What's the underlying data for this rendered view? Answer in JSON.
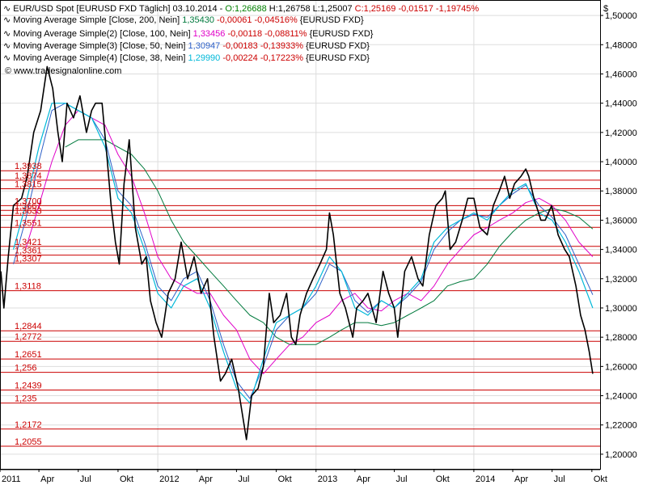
{
  "header": {
    "line1": {
      "instrument": "EUR/USD Spot [EURUSD FXD  Täglich] 03.10.2014 - ",
      "open": "O:1,26688",
      "high": " H:1,26758",
      "low": " L:1,25007",
      "close": " C:1,25169 -0,01517 -1,19745%"
    },
    "studies": [
      {
        "label": "Moving Average Simple [Close, 200, Nein] ",
        "value": "1,35430",
        "change": " -0,00061 -0,04516%",
        "symbol": " {EURUSD FXD}"
      },
      {
        "label": "Moving Average Simple(2) [Close, 100, Nein] ",
        "value": "1,33456",
        "change": " -0,00118 -0,08811%",
        "symbol": " {EURUSD FXD}"
      },
      {
        "label": "Moving Average Simple(3) [Close, 50, Nein] ",
        "value": "1,30947",
        "change": " -0,00183 -0,13933%",
        "symbol": " {EURUSD FXD}"
      },
      {
        "label": "Moving Average Simple(4) [Close, 38, Nein] ",
        "value": "1,29990",
        "change": " -0,00224 -0,17223%",
        "symbol": " {EURUSD FXD}"
      }
    ],
    "copyright": "© www.tradesignalonline.com"
  },
  "colors": {
    "price": "#000000",
    "level": "#cc0000",
    "ma200": "#007a3d",
    "ma100": "#e000c8",
    "ma50": "#2d60c8",
    "ma38": "#00b8d8",
    "grid": "#dddddd",
    "open_text": "#008000",
    "change_text": "#cc0000"
  },
  "chart_data": {
    "type": "line",
    "currency_symbol": "$",
    "ylim": [
      1.19,
      1.51
    ],
    "yticks": [
      1.2,
      1.22,
      1.24,
      1.26,
      1.28,
      1.3,
      1.32,
      1.34,
      1.36,
      1.38,
      1.4,
      1.42,
      1.44,
      1.46,
      1.48,
      1.5
    ],
    "ytick_labels": [
      "1,20000",
      "1,22000",
      "1,24000",
      "1,26000",
      "1,28000",
      "1,30000",
      "1,32000",
      "1,34000",
      "1,36000",
      "1,38000",
      "1,40000",
      "1,42000",
      "1,44000",
      "1,46000",
      "1,48000",
      "1,50000"
    ],
    "xlim": [
      "2011-01-01",
      "2014-10-20"
    ],
    "xticks": [
      {
        "date": "2011-01-01",
        "label": "2011",
        "grid": true
      },
      {
        "date": "2011-04-01",
        "label": "Apr",
        "grid": false
      },
      {
        "date": "2011-07-01",
        "label": "Jul",
        "grid": false
      },
      {
        "date": "2011-10-01",
        "label": "Okt",
        "grid": false
      },
      {
        "date": "2012-01-01",
        "label": "2012",
        "grid": true
      },
      {
        "date": "2012-04-01",
        "label": "Apr",
        "grid": false
      },
      {
        "date": "2012-07-01",
        "label": "Jul",
        "grid": false
      },
      {
        "date": "2012-10-01",
        "label": "Okt",
        "grid": false
      },
      {
        "date": "2013-01-01",
        "label": "2013",
        "grid": true
      },
      {
        "date": "2013-04-01",
        "label": "Apr",
        "grid": false
      },
      {
        "date": "2013-07-01",
        "label": "Jul",
        "grid": false
      },
      {
        "date": "2013-10-01",
        "label": "Okt",
        "grid": false
      },
      {
        "date": "2014-01-01",
        "label": "2014",
        "grid": true
      },
      {
        "date": "2014-04-01",
        "label": "Apr",
        "grid": false
      },
      {
        "date": "2014-07-01",
        "label": "Jul",
        "grid": false
      },
      {
        "date": "2014-10-01",
        "label": "Okt",
        "grid": false
      }
    ],
    "levels": [
      {
        "value": 1.3938,
        "label": "1,3938"
      },
      {
        "value": 1.3874,
        "label": "1,3874"
      },
      {
        "value": 1.3815,
        "label": "1,3815"
      },
      {
        "value": 1.37,
        "label": "1,3700"
      },
      {
        "value": 1.3667,
        "label": "1,3667"
      },
      {
        "value": 1.3633,
        "label": "1,3633"
      },
      {
        "value": 1.3551,
        "label": "1,3551"
      },
      {
        "value": 1.3421,
        "label": "1,3421"
      },
      {
        "value": 1.3361,
        "label": "1,3361"
      },
      {
        "value": 1.3307,
        "label": "1,3307"
      },
      {
        "value": 1.3118,
        "label": "1,3118"
      },
      {
        "value": 1.2844,
        "label": "1,2844"
      },
      {
        "value": 1.2772,
        "label": "1,2772"
      },
      {
        "value": 1.2651,
        "label": "1,2651"
      },
      {
        "value": 1.256,
        "label": "1,256"
      },
      {
        "value": 1.2439,
        "label": "1,2439"
      },
      {
        "value": 1.235,
        "label": "1,235"
      },
      {
        "value": 1.2172,
        "label": "1,2172"
      },
      {
        "value": 1.2055,
        "label": "1,2055"
      }
    ],
    "series": [
      {
        "key": "price",
        "x": [
          "2011-01-03",
          "2011-01-10",
          "2011-01-20",
          "2011-02-01",
          "2011-02-20",
          "2011-03-05",
          "2011-03-20",
          "2011-04-05",
          "2011-04-20",
          "2011-05-03",
          "2011-05-15",
          "2011-05-25",
          "2011-06-05",
          "2011-06-20",
          "2011-07-05",
          "2011-07-20",
          "2011-08-01",
          "2011-08-10",
          "2011-08-25",
          "2011-09-05",
          "2011-09-15",
          "2011-09-25",
          "2011-10-04",
          "2011-10-15",
          "2011-10-27",
          "2011-11-10",
          "2011-11-25",
          "2011-12-05",
          "2011-12-15",
          "2011-12-28",
          "2012-01-10",
          "2012-01-25",
          "2012-02-10",
          "2012-02-24",
          "2012-03-10",
          "2012-03-25",
          "2012-04-10",
          "2012-04-25",
          "2012-05-10",
          "2012-05-25",
          "2012-06-05",
          "2012-06-20",
          "2012-07-05",
          "2012-07-24",
          "2012-08-05",
          "2012-08-20",
          "2012-09-01",
          "2012-09-15",
          "2012-09-25",
          "2012-10-10",
          "2012-10-25",
          "2012-11-05",
          "2012-11-15",
          "2012-11-25",
          "2012-12-10",
          "2012-12-25",
          "2013-01-10",
          "2013-01-25",
          "2013-02-01",
          "2013-02-10",
          "2013-02-25",
          "2013-03-10",
          "2013-03-27",
          "2013-04-05",
          "2013-04-20",
          "2013-05-01",
          "2013-05-20",
          "2013-06-05",
          "2013-06-18",
          "2013-07-01",
          "2013-07-09",
          "2013-07-25",
          "2013-08-10",
          "2013-08-25",
          "2013-09-05",
          "2013-09-20",
          "2013-10-05",
          "2013-10-20",
          "2013-10-27",
          "2013-11-07",
          "2013-11-20",
          "2013-12-05",
          "2013-12-18",
          "2014-01-01",
          "2014-01-15",
          "2014-02-01",
          "2014-02-15",
          "2014-03-01",
          "2014-03-13",
          "2014-03-25",
          "2014-04-05",
          "2014-04-20",
          "2014-05-01",
          "2014-05-08",
          "2014-05-20",
          "2014-06-05",
          "2014-06-15",
          "2014-06-30",
          "2014-07-15",
          "2014-07-30",
          "2014-08-10",
          "2014-08-25",
          "2014-09-05",
          "2014-09-15",
          "2014-09-25",
          "2014-10-03"
        ],
        "y": [
          1.325,
          1.3,
          1.335,
          1.37,
          1.375,
          1.39,
          1.42,
          1.435,
          1.465,
          1.45,
          1.42,
          1.4,
          1.44,
          1.43,
          1.445,
          1.42,
          1.435,
          1.44,
          1.44,
          1.405,
          1.37,
          1.345,
          1.33,
          1.385,
          1.415,
          1.355,
          1.33,
          1.335,
          1.305,
          1.29,
          1.28,
          1.31,
          1.32,
          1.345,
          1.32,
          1.335,
          1.31,
          1.32,
          1.28,
          1.25,
          1.255,
          1.265,
          1.245,
          1.21,
          1.24,
          1.245,
          1.26,
          1.31,
          1.29,
          1.295,
          1.31,
          1.28,
          1.275,
          1.295,
          1.31,
          1.32,
          1.33,
          1.34,
          1.365,
          1.35,
          1.31,
          1.3,
          1.28,
          1.3,
          1.305,
          1.31,
          1.29,
          1.325,
          1.31,
          1.3,
          1.28,
          1.325,
          1.335,
          1.32,
          1.315,
          1.35,
          1.37,
          1.375,
          1.38,
          1.34,
          1.345,
          1.36,
          1.375,
          1.375,
          1.355,
          1.35,
          1.37,
          1.38,
          1.39,
          1.375,
          1.385,
          1.39,
          1.395,
          1.39,
          1.375,
          1.36,
          1.36,
          1.37,
          1.35,
          1.34,
          1.335,
          1.315,
          1.295,
          1.285,
          1.27,
          1.255
        ]
      },
      {
        "key": "ma38",
        "x": [
          "2011-02-01",
          "2011-03-01",
          "2011-04-01",
          "2011-05-01",
          "2011-06-01",
          "2011-07-01",
          "2011-08-01",
          "2011-09-01",
          "2011-10-01",
          "2011-11-01",
          "2011-12-01",
          "2012-01-01",
          "2012-02-01",
          "2012-03-01",
          "2012-04-01",
          "2012-05-01",
          "2012-06-01",
          "2012-07-01",
          "2012-08-01",
          "2012-09-01",
          "2012-10-01",
          "2012-11-01",
          "2012-12-01",
          "2013-01-01",
          "2013-02-01",
          "2013-03-01",
          "2013-04-01",
          "2013-05-01",
          "2013-06-01",
          "2013-07-01",
          "2013-08-01",
          "2013-09-01",
          "2013-10-01",
          "2013-11-01",
          "2013-12-01",
          "2014-01-01",
          "2014-02-01",
          "2014-03-01",
          "2014-04-01",
          "2014-05-01",
          "2014-06-01",
          "2014-07-01",
          "2014-08-01",
          "2014-09-01",
          "2014-10-03"
        ],
        "y": [
          1.34,
          1.37,
          1.41,
          1.44,
          1.44,
          1.435,
          1.43,
          1.41,
          1.375,
          1.365,
          1.34,
          1.31,
          1.3,
          1.315,
          1.32,
          1.3,
          1.27,
          1.245,
          1.235,
          1.265,
          1.29,
          1.295,
          1.3,
          1.315,
          1.335,
          1.325,
          1.3,
          1.295,
          1.305,
          1.3,
          1.31,
          1.32,
          1.345,
          1.355,
          1.36,
          1.365,
          1.36,
          1.37,
          1.38,
          1.385,
          1.365,
          1.36,
          1.345,
          1.325,
          1.3
        ]
      },
      {
        "key": "ma50",
        "x": [
          "2011-02-01",
          "2011-03-01",
          "2011-04-01",
          "2011-05-01",
          "2011-06-01",
          "2011-07-01",
          "2011-08-01",
          "2011-09-01",
          "2011-10-01",
          "2011-11-01",
          "2011-12-01",
          "2012-01-01",
          "2012-02-01",
          "2012-03-01",
          "2012-04-01",
          "2012-05-01",
          "2012-06-01",
          "2012-07-01",
          "2012-08-01",
          "2012-09-01",
          "2012-10-01",
          "2012-11-01",
          "2012-12-01",
          "2013-01-01",
          "2013-02-01",
          "2013-03-01",
          "2013-04-01",
          "2013-05-01",
          "2013-06-01",
          "2013-07-01",
          "2013-08-01",
          "2013-09-01",
          "2013-10-01",
          "2013-11-01",
          "2013-12-01",
          "2014-01-01",
          "2014-02-01",
          "2014-03-01",
          "2014-04-01",
          "2014-05-01",
          "2014-06-01",
          "2014-07-01",
          "2014-08-01",
          "2014-09-01",
          "2014-10-03"
        ],
        "y": [
          1.33,
          1.36,
          1.4,
          1.435,
          1.44,
          1.435,
          1.43,
          1.415,
          1.38,
          1.37,
          1.345,
          1.315,
          1.305,
          1.32,
          1.325,
          1.305,
          1.275,
          1.25,
          1.238,
          1.26,
          1.285,
          1.295,
          1.3,
          1.31,
          1.33,
          1.325,
          1.305,
          1.297,
          1.305,
          1.3,
          1.308,
          1.318,
          1.34,
          1.352,
          1.36,
          1.364,
          1.362,
          1.37,
          1.378,
          1.384,
          1.37,
          1.362,
          1.35,
          1.33,
          1.309
        ]
      },
      {
        "key": "ma100",
        "x": [
          "2011-03-01",
          "2011-04-01",
          "2011-05-01",
          "2011-06-01",
          "2011-07-01",
          "2011-08-01",
          "2011-09-01",
          "2011-10-01",
          "2011-11-01",
          "2011-12-01",
          "2012-01-01",
          "2012-02-01",
          "2012-03-01",
          "2012-04-01",
          "2012-05-01",
          "2012-06-01",
          "2012-07-01",
          "2012-08-01",
          "2012-09-01",
          "2012-10-01",
          "2012-11-01",
          "2012-12-01",
          "2013-01-01",
          "2013-02-01",
          "2013-03-01",
          "2013-04-01",
          "2013-05-01",
          "2013-06-01",
          "2013-07-01",
          "2013-08-01",
          "2013-09-01",
          "2013-10-01",
          "2013-11-01",
          "2013-12-01",
          "2014-01-01",
          "2014-02-01",
          "2014-03-01",
          "2014-04-01",
          "2014-05-01",
          "2014-06-01",
          "2014-07-01",
          "2014-08-01",
          "2014-09-01",
          "2014-10-03"
        ],
        "y": [
          1.34,
          1.37,
          1.4,
          1.425,
          1.435,
          1.43,
          1.425,
          1.405,
          1.39,
          1.365,
          1.335,
          1.32,
          1.315,
          1.31,
          1.31,
          1.295,
          1.285,
          1.265,
          1.255,
          1.265,
          1.275,
          1.28,
          1.29,
          1.295,
          1.305,
          1.31,
          1.3,
          1.298,
          1.305,
          1.31,
          1.305,
          1.315,
          1.33,
          1.34,
          1.35,
          1.355,
          1.36,
          1.365,
          1.372,
          1.375,
          1.37,
          1.36,
          1.345,
          1.335
        ]
      },
      {
        "key": "ma200",
        "x": [
          "2011-06-01",
          "2011-07-01",
          "2011-08-01",
          "2011-09-01",
          "2011-10-01",
          "2011-11-01",
          "2011-12-01",
          "2012-01-01",
          "2012-02-01",
          "2012-03-01",
          "2012-04-01",
          "2012-05-01",
          "2012-06-01",
          "2012-07-01",
          "2012-08-01",
          "2012-09-01",
          "2012-10-01",
          "2012-11-01",
          "2012-12-01",
          "2013-01-01",
          "2013-02-01",
          "2013-03-01",
          "2013-04-01",
          "2013-05-01",
          "2013-06-01",
          "2013-07-01",
          "2013-08-01",
          "2013-09-01",
          "2013-10-01",
          "2013-11-01",
          "2013-12-01",
          "2014-01-01",
          "2014-02-01",
          "2014-03-01",
          "2014-04-01",
          "2014-05-01",
          "2014-06-01",
          "2014-07-01",
          "2014-08-01",
          "2014-09-01",
          "2014-10-03"
        ],
        "y": [
          1.41,
          1.415,
          1.415,
          1.415,
          1.41,
          1.405,
          1.395,
          1.38,
          1.36,
          1.345,
          1.335,
          1.325,
          1.315,
          1.305,
          1.295,
          1.29,
          1.28,
          1.275,
          1.275,
          1.275,
          1.28,
          1.285,
          1.29,
          1.29,
          1.288,
          1.29,
          1.295,
          1.3,
          1.305,
          1.315,
          1.318,
          1.32,
          1.33,
          1.342,
          1.352,
          1.36,
          1.365,
          1.368,
          1.366,
          1.362,
          1.354
        ]
      }
    ]
  }
}
